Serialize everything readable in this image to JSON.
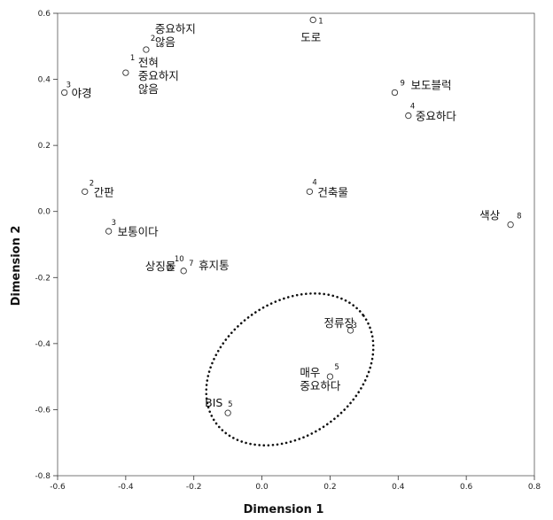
{
  "chart_data": {
    "type": "scatter",
    "title": "",
    "xlabel": "Dimension 1",
    "ylabel": "Dimension 2",
    "xlim": [
      -0.6,
      0.8
    ],
    "ylim": [
      -0.8,
      0.6
    ],
    "xticks": [
      "-0.6",
      "-0.4",
      "-0.2",
      "0.0",
      "0.2",
      "0.4",
      "0.6",
      "0.8"
    ],
    "yticks": [
      "-0.8",
      "-0.6",
      "-0.4",
      "-0.2",
      "0.0",
      "0.2",
      "0.4",
      "0.6"
    ],
    "grid": false,
    "points": [
      {
        "x": 0.15,
        "y": 0.58,
        "num": "1",
        "lines": [
          "도로"
        ]
      },
      {
        "x": -0.34,
        "y": 0.49,
        "num": "2",
        "lines": [
          "중요하지",
          "않음"
        ]
      },
      {
        "x": -0.4,
        "y": 0.42,
        "num": "1",
        "lines": [
          "전혀",
          "중요하지",
          "않음"
        ]
      },
      {
        "x": -0.58,
        "y": 0.36,
        "num": "3",
        "lines": [
          "야경"
        ]
      },
      {
        "x": 0.39,
        "y": 0.36,
        "num": "9",
        "lines": [
          "보도블럭"
        ]
      },
      {
        "x": 0.43,
        "y": 0.29,
        "num": "4",
        "lines": [
          "중요하다"
        ]
      },
      {
        "x": -0.52,
        "y": 0.06,
        "num": "2",
        "lines": [
          "간판"
        ]
      },
      {
        "x": 0.14,
        "y": 0.06,
        "num": "4",
        "lines": [
          "건축물"
        ]
      },
      {
        "x": 0.73,
        "y": -0.04,
        "num": "8",
        "lines": [
          "색상"
        ]
      },
      {
        "x": -0.45,
        "y": -0.06,
        "num": "3",
        "lines": [
          "보통이다"
        ]
      },
      {
        "x": -0.23,
        "y": -0.18,
        "num": "7",
        "lines": [
          "휴지통"
        ]
      },
      {
        "x": -0.27,
        "y": -0.17,
        "num": "10",
        "lines": [
          "상징물"
        ]
      },
      {
        "x": 0.26,
        "y": -0.36,
        "num": "3",
        "lines": [
          "정류장"
        ]
      },
      {
        "x": 0.2,
        "y": -0.5,
        "num": "5",
        "lines": [
          "매우",
          "중요하다"
        ]
      },
      {
        "x": -0.1,
        "y": -0.61,
        "num": "5",
        "lines": [
          "BIS"
        ]
      }
    ]
  }
}
